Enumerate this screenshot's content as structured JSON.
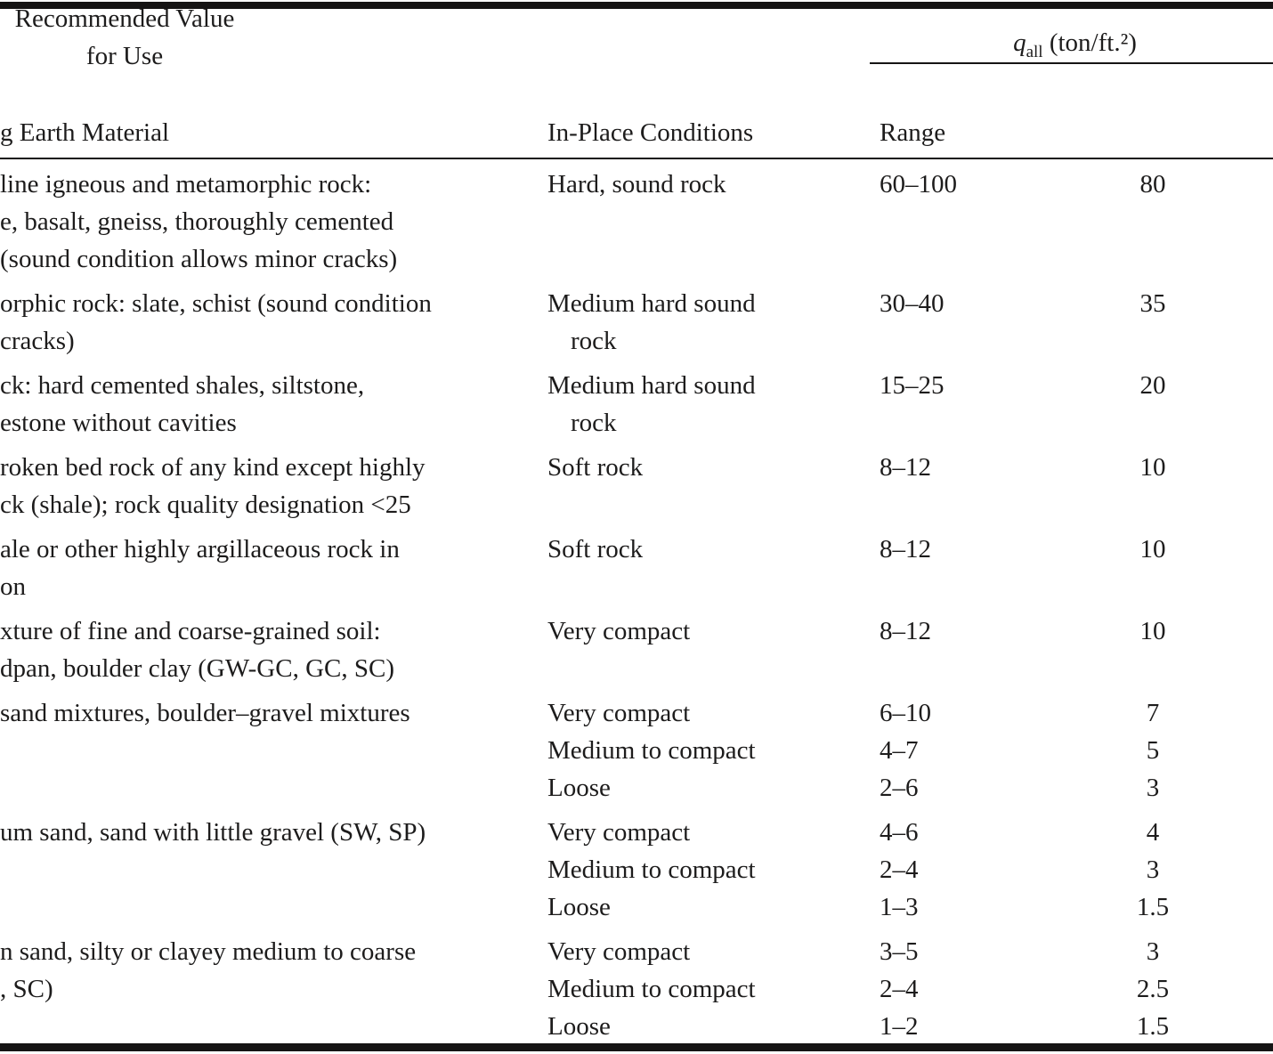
{
  "header": {
    "q_symbol": "q",
    "q_sub": "all",
    "q_units": " (ton/ft.²)",
    "col_material": "g Earth Material",
    "col_conditions": "In-Place Conditions",
    "col_range": "Range",
    "col_recommended_line1": "Recommended Value",
    "col_recommended_line2": "for Use"
  },
  "table": {
    "rows": [
      {
        "material_lines": [
          "line igneous and metamorphic rock:",
          "e, basalt, gneiss, thoroughly cemented",
          "(sound condition allows minor cracks)"
        ],
        "conditions": [
          "Hard, sound rock"
        ],
        "ranges": [
          "60–100"
        ],
        "recommended": [
          "80"
        ]
      },
      {
        "material_lines": [
          "orphic rock: slate, schist (sound condition",
          "cracks)"
        ],
        "conditions": [
          "Medium hard sound",
          "rock"
        ],
        "ranges": [
          "30–40"
        ],
        "recommended": [
          "35"
        ]
      },
      {
        "material_lines": [
          "ck: hard cemented shales, siltstone,",
          "estone without cavities"
        ],
        "conditions": [
          "Medium hard sound",
          "rock"
        ],
        "ranges": [
          "15–25"
        ],
        "recommended": [
          "20"
        ]
      },
      {
        "material_lines": [
          "roken bed rock of any kind except highly",
          "ck (shale); rock quality designation <25"
        ],
        "conditions": [
          "Soft rock"
        ],
        "ranges": [
          "8–12"
        ],
        "recommended": [
          "10"
        ]
      },
      {
        "material_lines": [
          "ale or other highly argillaceous rock in",
          "on"
        ],
        "conditions": [
          "Soft rock"
        ],
        "ranges": [
          "8–12"
        ],
        "recommended": [
          "10"
        ]
      },
      {
        "material_lines": [
          "xture of fine and coarse-grained soil:",
          "dpan, boulder clay (GW-GC, GC, SC)"
        ],
        "conditions": [
          "Very compact"
        ],
        "ranges": [
          "8–12"
        ],
        "recommended": [
          "10"
        ]
      },
      {
        "material_lines": [
          "sand mixtures, boulder–gravel mixtures"
        ],
        "conditions": [
          "Very compact",
          "Medium to compact",
          "Loose"
        ],
        "ranges": [
          "6–10",
          "4–7",
          "2–6"
        ],
        "recommended": [
          "7",
          "5",
          "3"
        ]
      },
      {
        "material_lines": [
          "um sand, sand with little gravel (SW, SP)"
        ],
        "conditions": [
          "Very compact",
          "Medium to compact",
          "Loose"
        ],
        "ranges": [
          "4–6",
          "2–4",
          "1–3"
        ],
        "recommended": [
          "4",
          "3",
          "1.5"
        ]
      },
      {
        "material_lines": [
          "n sand, silty or clayey medium to coarse",
          ", SC)"
        ],
        "conditions": [
          "Very compact",
          "Medium to compact",
          "Loose"
        ],
        "ranges": [
          "3–5",
          "2–4",
          "1–2"
        ],
        "recommended": [
          "3",
          "2.5",
          "1.5"
        ]
      }
    ]
  }
}
